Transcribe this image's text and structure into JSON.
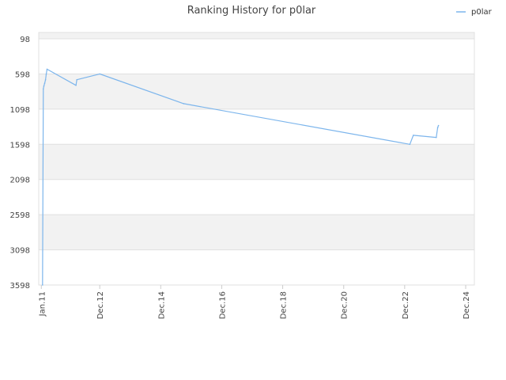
{
  "chart_data": {
    "type": "line",
    "title": "Ranking History for p0lar",
    "xlabel": "",
    "ylabel": "",
    "y_reversed": true,
    "ylim": [
      98,
      3598
    ],
    "y_ticks": [
      98,
      598,
      1098,
      1598,
      2098,
      2598,
      3098,
      3598
    ],
    "x_range": [
      "2010-12-01",
      "2025-03-15"
    ],
    "x_ticks": [
      {
        "label": "Jan.11",
        "date": "2011-01-01"
      },
      {
        "label": "Dec.12",
        "date": "2012-12-01"
      },
      {
        "label": "Dec.14",
        "date": "2014-12-01"
      },
      {
        "label": "Dec.16",
        "date": "2016-12-01"
      },
      {
        "label": "Dec.18",
        "date": "2018-12-01"
      },
      {
        "label": "Dec.20",
        "date": "2020-12-01"
      },
      {
        "label": "Dec.22",
        "date": "2022-12-01"
      },
      {
        "label": "Dec.24",
        "date": "2024-12-01"
      }
    ],
    "grid": true,
    "legend_position": "top-right",
    "colors": {
      "line": "#7cb5ec",
      "band": "#f2f2f2",
      "grid": "#e0e0e0"
    },
    "series": [
      {
        "name": "p0lar",
        "points": [
          {
            "x": "2011-01-15",
            "y": 3598
          },
          {
            "x": "2011-01-25",
            "y": 810
          },
          {
            "x": "2011-02-01",
            "y": 770
          },
          {
            "x": "2011-02-10",
            "y": 730
          },
          {
            "x": "2011-02-20",
            "y": 680
          },
          {
            "x": "2011-03-01",
            "y": 600
          },
          {
            "x": "2011-03-10",
            "y": 530
          },
          {
            "x": "2012-02-20",
            "y": 760
          },
          {
            "x": "2012-03-01",
            "y": 680
          },
          {
            "x": "2012-12-01",
            "y": 598
          },
          {
            "x": "2015-09-01",
            "y": 1020
          },
          {
            "x": "2023-02-01",
            "y": 1598
          },
          {
            "x": "2023-03-15",
            "y": 1470
          },
          {
            "x": "2023-12-15",
            "y": 1500
          },
          {
            "x": "2024-01-01",
            "y": 1360
          },
          {
            "x": "2024-01-10",
            "y": 1330
          }
        ]
      }
    ]
  }
}
